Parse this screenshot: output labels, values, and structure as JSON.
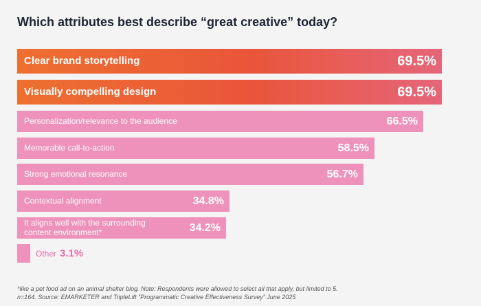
{
  "chart_data": {
    "type": "bar",
    "orientation": "horizontal",
    "title": "Which attributes best describe “great creative” today?",
    "categories": [
      "Clear brand storytelling",
      "Visually compelling design",
      "Personalization/relevance to the audience",
      "Memorable call-to-action",
      "Strong emotional resonance",
      "Contextual alignment",
      "It aligns well with the surrounding content environment*",
      "Other"
    ],
    "values": [
      69.5,
      69.5,
      66.5,
      58.5,
      56.7,
      34.8,
      34.2,
      3.1
    ],
    "value_labels": [
      "69.5%",
      "69.5%",
      "66.5%",
      "58.5%",
      "56.7%",
      "34.8%",
      "34.2%",
      "3.1%"
    ],
    "highlight_count": 2,
    "xlim": [
      0,
      70
    ],
    "colors": {
      "highlight_start": "#ee7030",
      "highlight_end": "#e5667a",
      "bar": "#ee92bc",
      "other_text": "#e86ba6"
    },
    "footnote": [
      "*like a pet food ad on an animal shelter blog. Note: Respondents were allowed to select all that apply, but limited to 5.",
      "n=164. Source: EMARKETER and TripleLift “Programmatic Creative Effectiveness Survey” June 2025"
    ]
  }
}
